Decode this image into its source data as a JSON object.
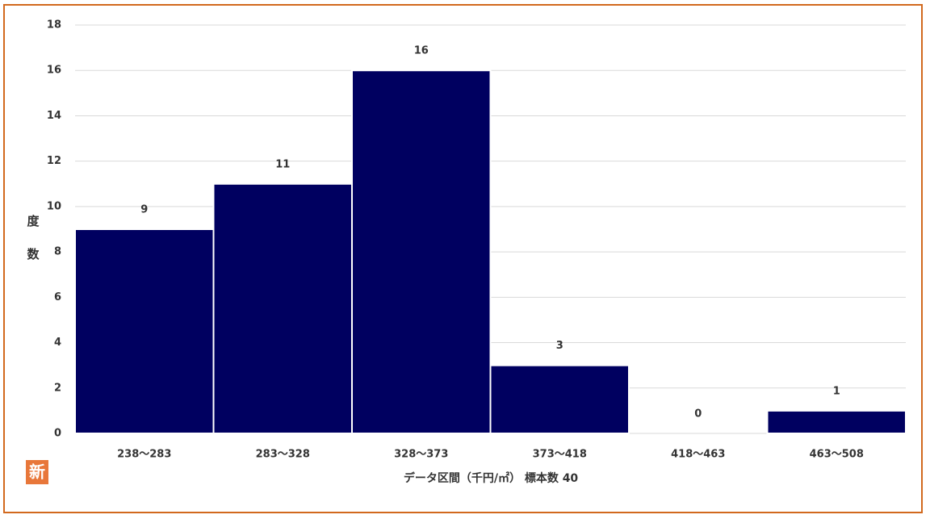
{
  "chart_data": {
    "type": "bar",
    "y_label": "度数",
    "x_label": "データ区間（千円/㎡） 標本数 40",
    "corner_label": "新",
    "categories": [
      "238～283",
      "283～328",
      "328～373",
      "373～418",
      "418～463",
      "463～508"
    ],
    "values": [
      9,
      11,
      16,
      3,
      0,
      1
    ],
    "color": "#000060",
    "ylim": [
      0,
      18
    ],
    "yticks": [
      0,
      2,
      4,
      6,
      8,
      10,
      12,
      14,
      16,
      18
    ],
    "grid": true
  }
}
